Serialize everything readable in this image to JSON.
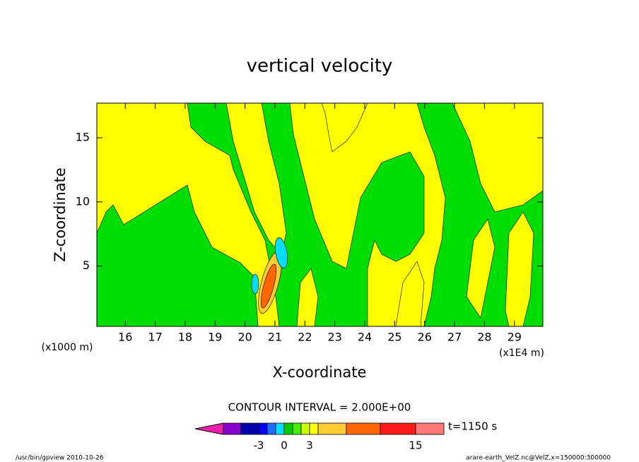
{
  "chart_data": {
    "type": "contour",
    "title": "vertical velocity",
    "xlabel": "X-coordinate",
    "ylabel": "Z-coordinate",
    "x_unit": "(x1E4 m)",
    "y_unit": "(x1000 m)",
    "xlim": [
      15.05,
      29.95
    ],
    "ylim": [
      0.3,
      17.7
    ],
    "xticks": [
      16,
      17,
      18,
      19,
      20,
      21,
      22,
      23,
      24,
      25,
      26,
      27,
      28,
      29
    ],
    "yticks": [
      5,
      10,
      15
    ],
    "contour_interval": "CONTOUR INTERVAL = 2.000E+00",
    "time": "t=1150 s",
    "colorbar": {
      "colors": [
        "#ee22aa",
        "#8800cc",
        "#0000aa",
        "#0000ee",
        "#1a6cff",
        "#00ddff",
        "#00cc00",
        "#44ee00",
        "#ccff00",
        "#ffff00",
        "#ffcc33",
        "#ff6600",
        "#ff1a1a",
        "#ff7777",
        "#ffbbbb"
      ],
      "ticks": [
        -3,
        0,
        3,
        15
      ]
    },
    "footer_left": "/usr/bin/gpview 2010-10-26",
    "footer_right": "arare-earth_VelZ.nc@VelZ,x=150000:300000"
  }
}
